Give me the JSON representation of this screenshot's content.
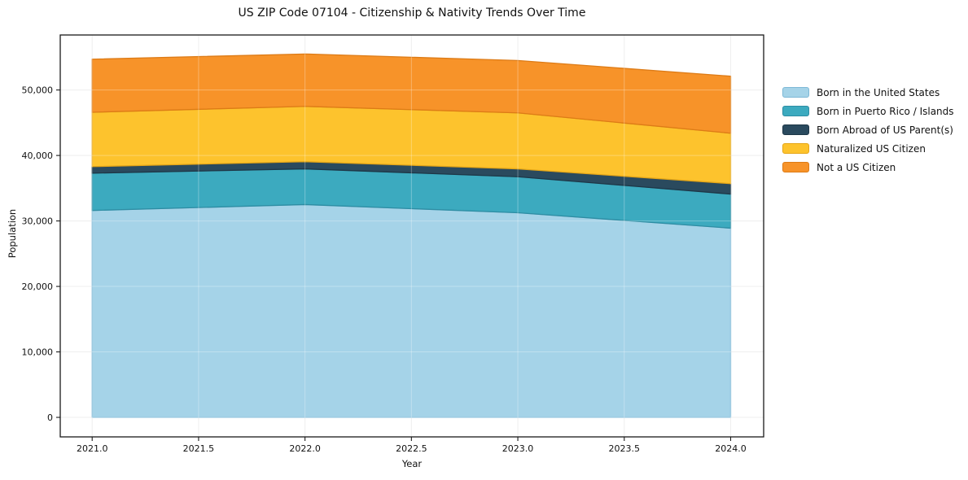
{
  "chart_data": {
    "type": "area",
    "title": "US ZIP Code 07104 - Citizenship & Nativity Trends Over Time",
    "xlabel": "Year",
    "ylabel": "Population",
    "x": [
      2021,
      2022,
      2023,
      2024
    ],
    "series": [
      {
        "name": "Born in the United States",
        "color": "#a5d3e8",
        "edge_color": "#7db8d6",
        "values": [
          31600,
          32500,
          31250,
          28900
        ]
      },
      {
        "name": "Born in Puerto Rico / Islands",
        "color": "#3caabf",
        "edge_color": "#2d8da3",
        "values": [
          5700,
          5450,
          5500,
          5200
        ]
      },
      {
        "name": "Born Abroad of US Parent(s)",
        "color": "#2a4a5e",
        "edge_color": "#1e3747",
        "values": [
          1000,
          1100,
          1200,
          1600
        ]
      },
      {
        "name": "Naturalized US Citizen",
        "color": "#fdc32d",
        "edge_color": "#e5a617",
        "values": [
          8300,
          8450,
          8550,
          7700
        ]
      },
      {
        "name": "Not a US Citizen",
        "color": "#f79329",
        "edge_color": "#dd7b16",
        "values": [
          8100,
          8000,
          8000,
          8700
        ]
      }
    ],
    "stacked": true,
    "x_ticks": [
      2021.0,
      2021.5,
      2022.0,
      2022.5,
      2023.0,
      2023.5,
      2024.0
    ],
    "x_tick_labels": [
      "2021.0",
      "2021.5",
      "2022.0",
      "2022.5",
      "2023.0",
      "2023.5",
      "2024.0"
    ],
    "y_ticks": [
      0,
      10000,
      20000,
      30000,
      40000,
      50000
    ],
    "y_tick_labels": [
      "0",
      "10,000",
      "20,000",
      "30,000",
      "40,000",
      "50,000"
    ],
    "xlim": [
      2020.85,
      2024.155
    ],
    "ylim": [
      -2980,
      58400
    ],
    "grid": true,
    "grid_color": "#e9e9e9",
    "spine_color": "#1a1a1a",
    "legend_position": "right of plot, outside"
  }
}
